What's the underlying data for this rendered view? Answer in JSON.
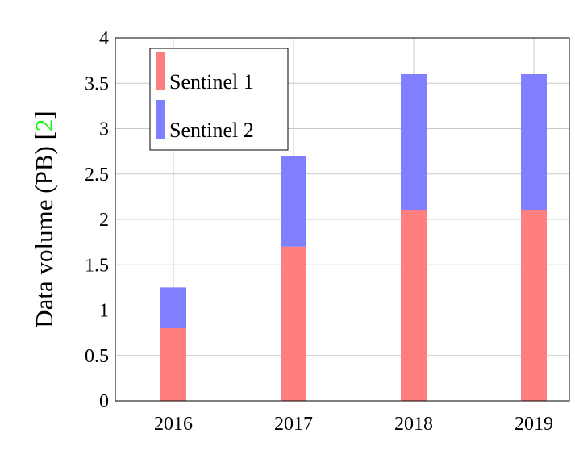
{
  "chart_data": {
    "type": "stacked_bar",
    "y_label_parts": [
      "Data volume (PB) [",
      "2",
      "]"
    ],
    "categories": [
      "2016",
      "2017",
      "2018",
      "2019"
    ],
    "series": [
      {
        "name": "Sentinel 1",
        "color": "#ff7f7f",
        "values": [
          0.8,
          1.7,
          2.1,
          2.1
        ]
      },
      {
        "name": "Sentinel 2",
        "color": "#7f7fff",
        "values": [
          0.45,
          1.0,
          1.5,
          1.5
        ]
      }
    ],
    "ylim": [
      0,
      4
    ],
    "yticks": [
      0,
      0.5,
      1,
      1.5,
      2,
      2.5,
      3,
      3.5,
      4
    ],
    "grid": true,
    "legend": "upper left"
  }
}
